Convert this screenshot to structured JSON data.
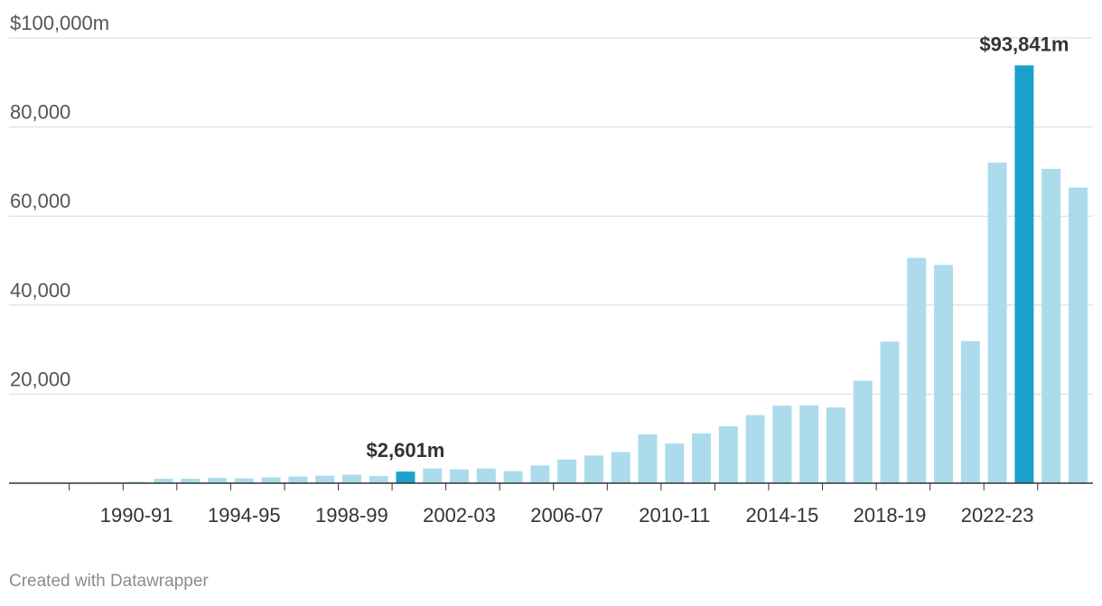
{
  "chart_data": {
    "type": "bar",
    "title": "",
    "xlabel": "",
    "ylabel": "",
    "ylim": [
      0,
      100000
    ],
    "y_ticks": [
      {
        "value": 100000,
        "label": "$100,000m"
      },
      {
        "value": 80000,
        "label": "80,000"
      },
      {
        "value": 60000,
        "label": "60,000"
      },
      {
        "value": 40000,
        "label": "40,000"
      },
      {
        "value": 20000,
        "label": "20,000"
      }
    ],
    "categories": [
      "1988-89",
      "1989-90",
      "1990-91",
      "1991-92",
      "1992-93",
      "1993-94",
      "1994-95",
      "1995-96",
      "1996-97",
      "1997-98",
      "1998-99",
      "1999-00",
      "2000-01",
      "2001-02",
      "2002-03",
      "2003-04",
      "2004-05",
      "2005-06",
      "2006-07",
      "2007-08",
      "2008-09",
      "2009-10",
      "2010-11",
      "2011-12",
      "2012-13",
      "2013-14",
      "2014-15",
      "2015-16",
      "2016-17",
      "2017-18",
      "2018-19",
      "2019-20",
      "2020-21",
      "2021-22",
      "2022-23",
      "2023-24",
      "2024-25",
      "2025-26"
    ],
    "x_tick_labels": [
      "1990-91",
      "1994-95",
      "1998-99",
      "2002-03",
      "2006-07",
      "2010-11",
      "2014-15",
      "2018-19",
      "2022-23"
    ],
    "values": [
      0,
      150,
      300,
      1000,
      1000,
      1200,
      1100,
      1300,
      1500,
      1700,
      1900,
      1600,
      2601,
      3300,
      3100,
      3300,
      2700,
      4000,
      5300,
      6200,
      7000,
      11000,
      8900,
      11200,
      12800,
      15300,
      17400,
      17500,
      17000,
      23000,
      31800,
      50600,
      49000,
      31900,
      72000,
      93841,
      70600,
      66400
    ],
    "highlight_color": "#1aa2cd",
    "bar_color": "#acdcec",
    "highlights": [
      {
        "category": "2000-01",
        "value": 2601,
        "label": "$2,601m"
      },
      {
        "category": "2023-24",
        "value": 93841,
        "label": "$93,841m"
      }
    ]
  },
  "footer": {
    "credit": "Created with Datawrapper"
  }
}
